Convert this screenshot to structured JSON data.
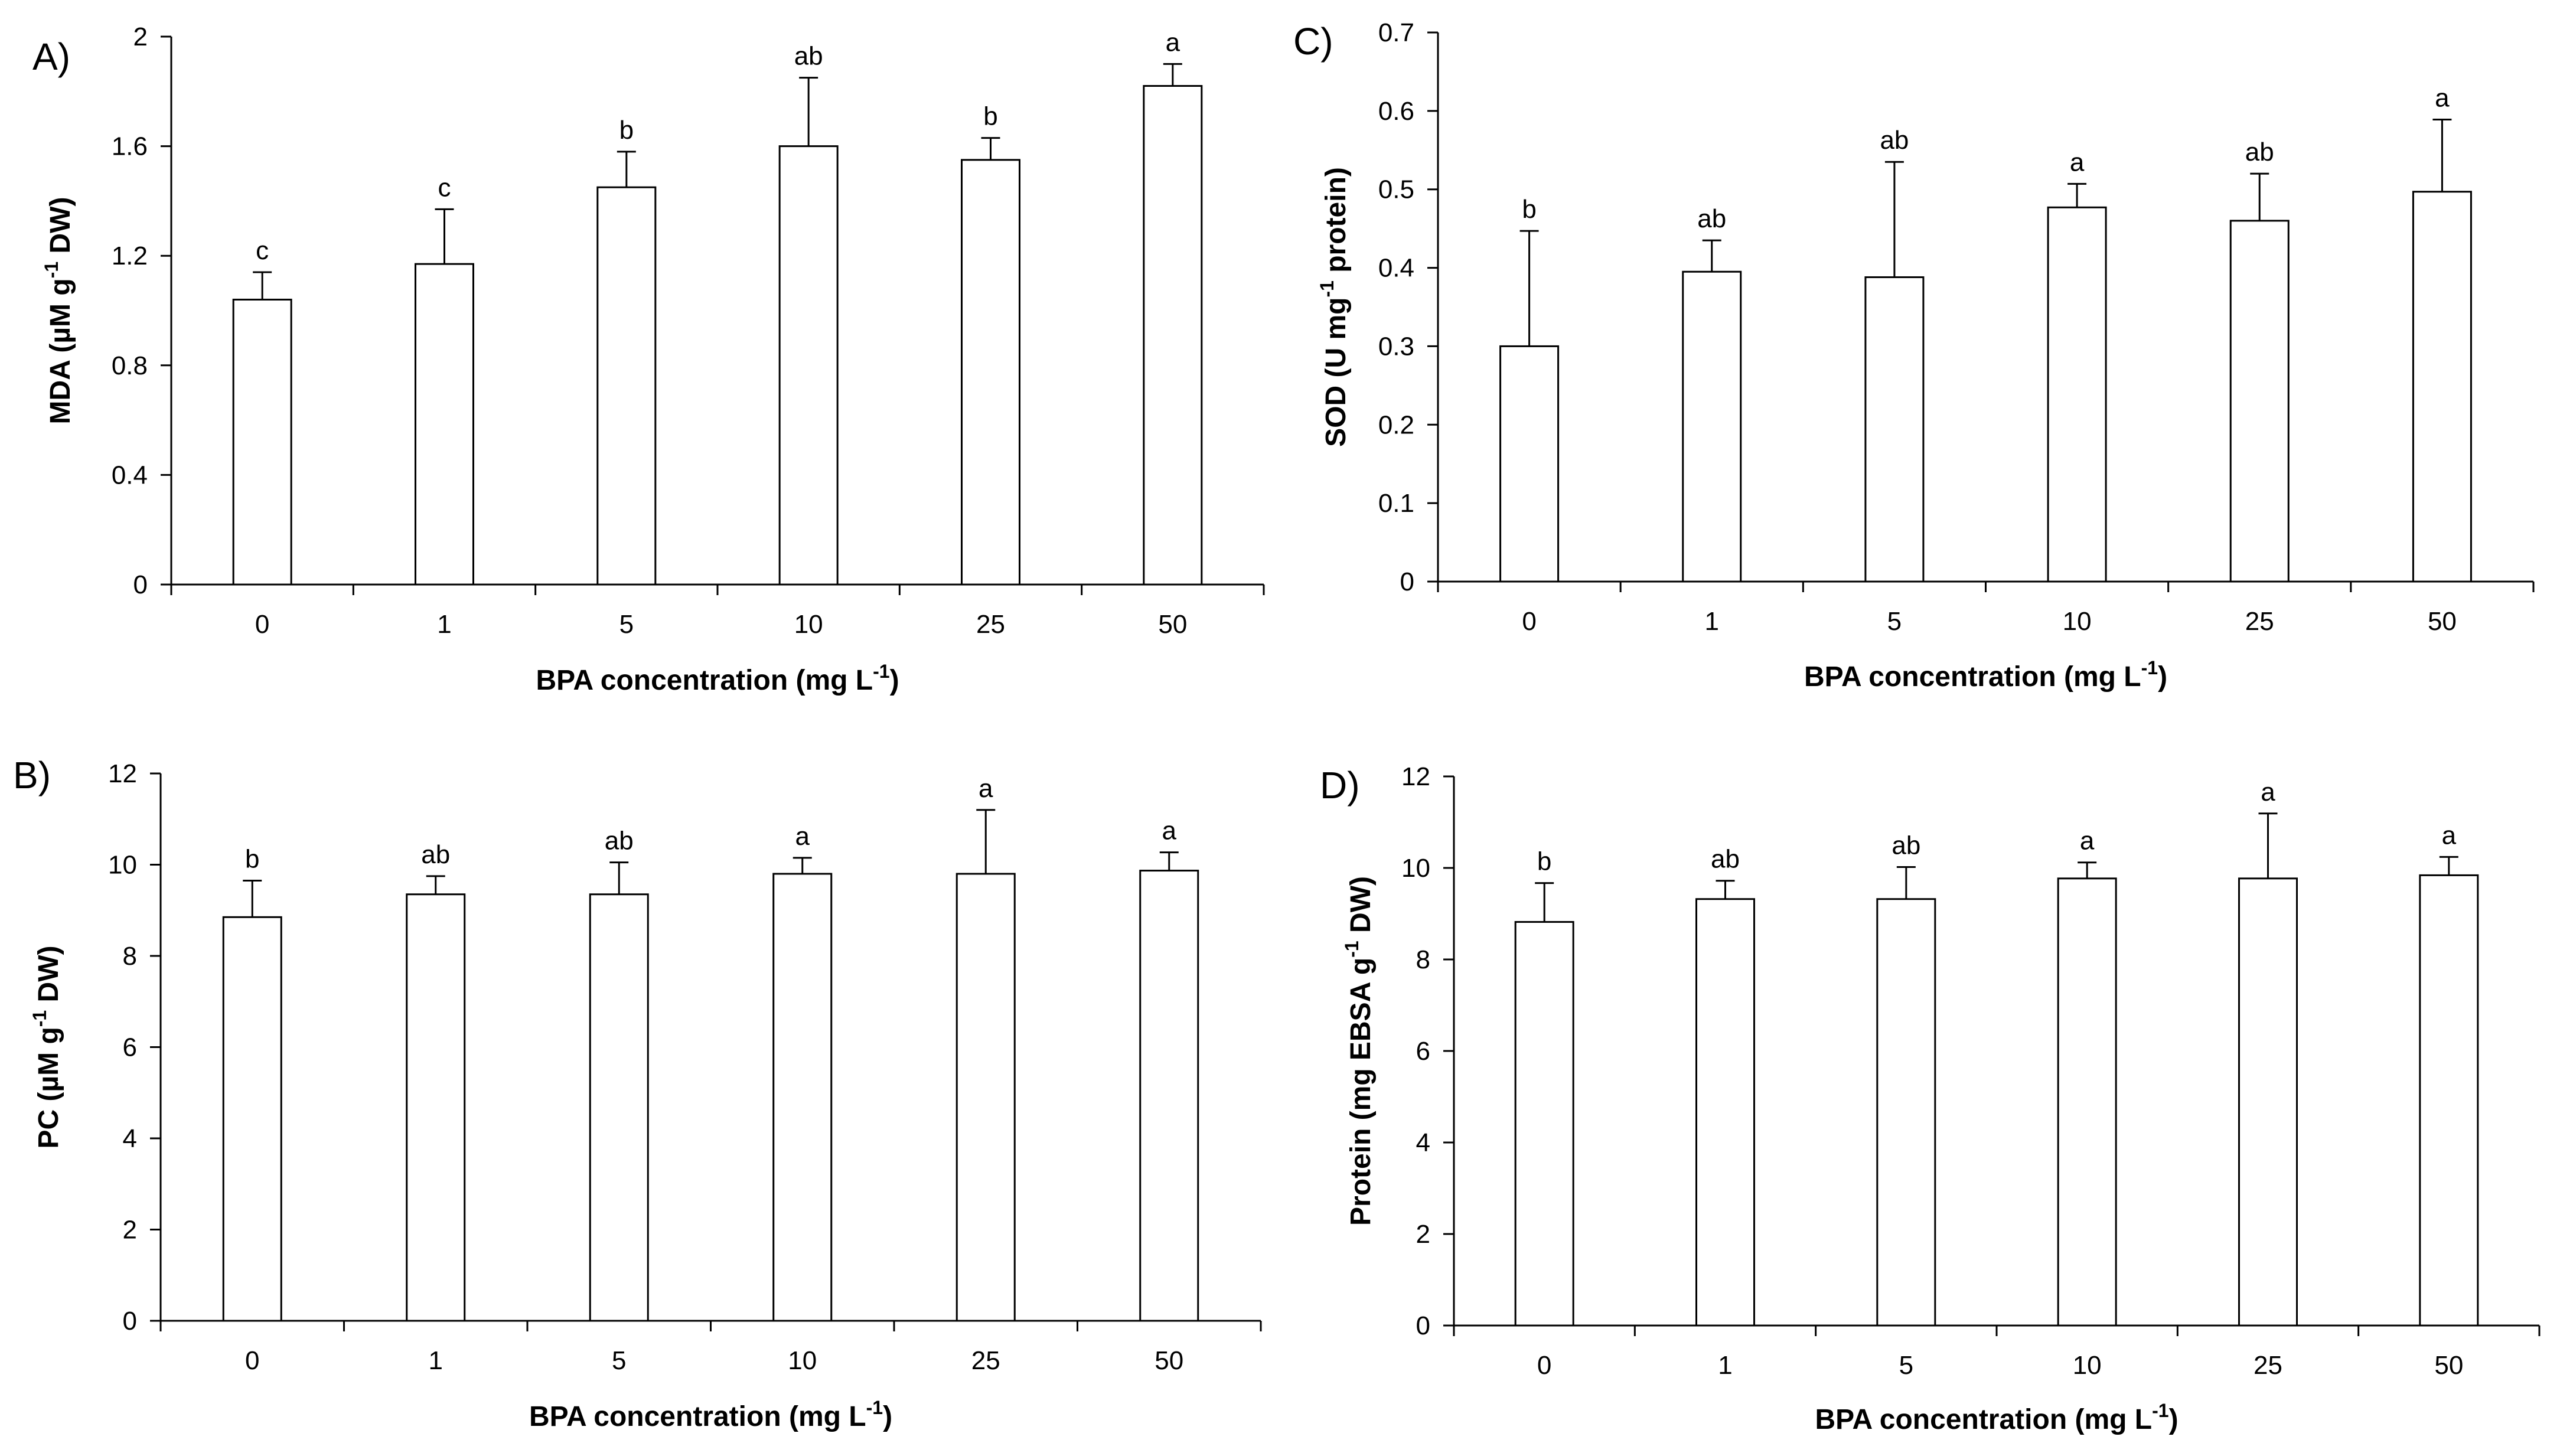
{
  "chart_data": [
    {
      "panel": "A)",
      "type": "bar",
      "categories": [
        "0",
        "1",
        "5",
        "10",
        "25",
        "50"
      ],
      "values": [
        1.04,
        1.17,
        1.45,
        1.6,
        1.55,
        1.82
      ],
      "errors": [
        0.1,
        0.2,
        0.13,
        0.25,
        0.08,
        0.08
      ],
      "letters": [
        "c",
        "c",
        "b",
        "ab",
        "b",
        "a"
      ],
      "ylim": [
        0,
        2
      ],
      "yticks": [
        "0",
        "0.4",
        "0.8",
        "1.2",
        "1.6",
        "2"
      ],
      "ylabel_main": "MDA (µM g",
      "ylabel_sup": "-1",
      "ylabel_tail": " DW)",
      "xlabel_main": "BPA concentration (mg L",
      "xlabel_sup": "-1",
      "xlabel_tail": ")"
    },
    {
      "panel": "C)",
      "type": "bar",
      "categories": [
        "0",
        "1",
        "5",
        "10",
        "25",
        "50"
      ],
      "values": [
        0.3,
        0.395,
        0.388,
        0.477,
        0.46,
        0.497
      ],
      "errors": [
        0.147,
        0.04,
        0.147,
        0.03,
        0.06,
        0.092
      ],
      "letters": [
        "b",
        "ab",
        "ab",
        "a",
        "ab",
        "a"
      ],
      "ylim": [
        0,
        0.7
      ],
      "yticks": [
        "0",
        "0.1",
        "0.2",
        "0.3",
        "0.4",
        "0.5",
        "0.6",
        "0.7"
      ],
      "ylabel_main": "SOD (U mg",
      "ylabel_sup": "-1",
      "ylabel_tail": " protein)",
      "xlabel_main": "BPA concentration (mg L",
      "xlabel_sup": "-1",
      "xlabel_tail": ")"
    },
    {
      "panel": "B)",
      "type": "bar",
      "categories": [
        "0",
        "1",
        "5",
        "10",
        "25",
        "50"
      ],
      "values": [
        8.85,
        9.35,
        9.35,
        9.8,
        9.8,
        9.87
      ],
      "errors": [
        0.8,
        0.4,
        0.7,
        0.35,
        1.4,
        0.4
      ],
      "letters": [
        "b",
        "ab",
        "ab",
        "a",
        "a",
        "a"
      ],
      "ylim": [
        0,
        12
      ],
      "yticks": [
        "0",
        "2",
        "4",
        "6",
        "8",
        "10",
        "12"
      ],
      "ylabel_main": "PC (µM g",
      "ylabel_sup": "-1",
      "ylabel_tail": " DW)",
      "xlabel_main": "BPA concentration (mg L",
      "xlabel_sup": "-1",
      "xlabel_tail": ")"
    },
    {
      "panel": "D)",
      "type": "bar",
      "categories": [
        "0",
        "1",
        "5",
        "10",
        "25",
        "50"
      ],
      "values": [
        8.82,
        9.32,
        9.32,
        9.77,
        9.77,
        9.84
      ],
      "errors": [
        0.85,
        0.4,
        0.7,
        0.35,
        1.42,
        0.4
      ],
      "letters": [
        "b",
        "ab",
        "ab",
        "a",
        "a",
        "a"
      ],
      "ylim": [
        0,
        12
      ],
      "yticks": [
        "0",
        "2",
        "4",
        "6",
        "8",
        "10",
        "12"
      ],
      "ylabel_main": "Protein (mg EBSA g",
      "ylabel_sup": "-1",
      "ylabel_tail": " DW)",
      "xlabel_main": "BPA concentration (mg L",
      "xlabel_sup": "-1",
      "xlabel_tail": ")"
    }
  ]
}
